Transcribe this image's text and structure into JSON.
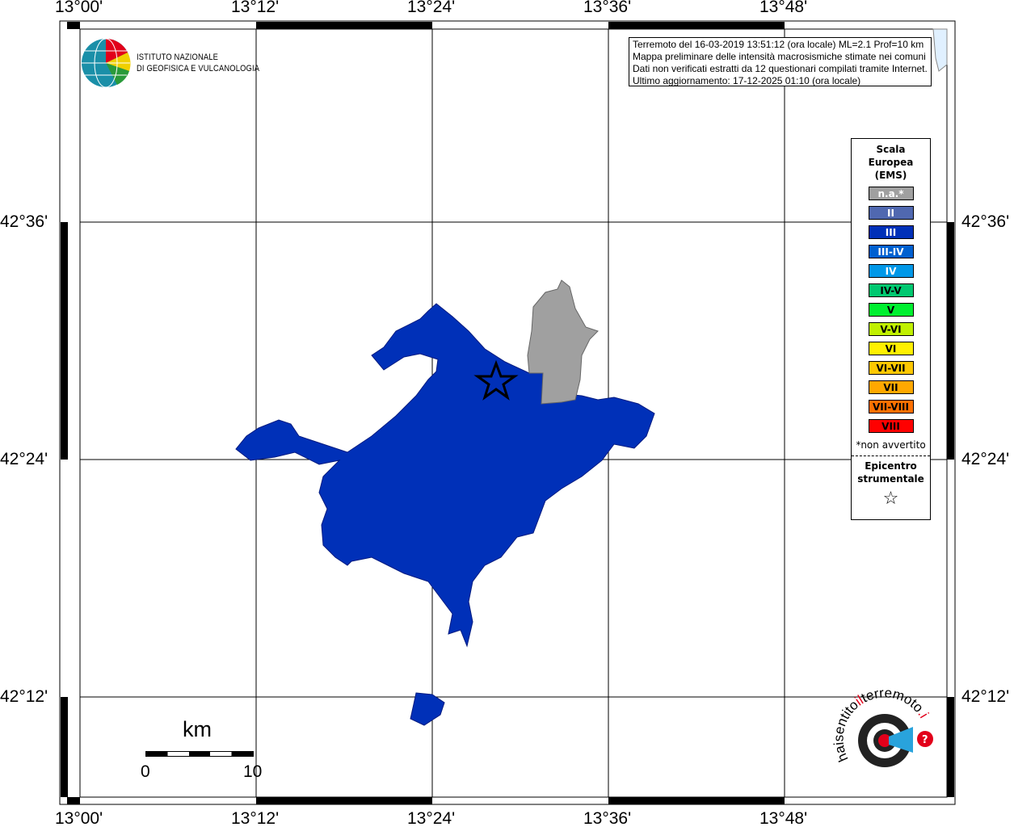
{
  "map": {
    "lon_ticks": [
      "13°00'",
      "13°12'",
      "13°24'",
      "13°36'",
      "13°48'"
    ],
    "lat_ticks": [
      "42°36'",
      "42°24'",
      "42°12'"
    ]
  },
  "info": {
    "lines": [
      "Terremoto del 16-03-2019 13:51:12 (ora locale) ML=2.1 Prof=10 km",
      "Mappa preliminare delle intensità macrosismiche stimate nei comuni",
      "Dati non verificati estratti da 12 questionari compilati tramite Internet.",
      "Ultimo aggiornamento: 17-12-2025 01:10 (ora locale)"
    ]
  },
  "logo": {
    "line1": "ISTITUTO NAZIONALE",
    "line2": "DI GEOFISICA E VULCANOLOGIA",
    "haisentito": "haisentitoilterremoto.it www."
  },
  "legend": {
    "title": [
      "Scala",
      "Europea",
      "(EMS)"
    ],
    "items": [
      {
        "label": "n.a.*",
        "color": "#a0a0a0",
        "text": "#ffffff"
      },
      {
        "label": "II",
        "color": "#5068b0",
        "text": "#ffffff"
      },
      {
        "label": "III",
        "color": "#0030b8",
        "text": "#ffffff"
      },
      {
        "label": "III-IV",
        "color": "#0060d0",
        "text": "#ffffff"
      },
      {
        "label": "IV",
        "color": "#0098e8",
        "text": "#ffffff"
      },
      {
        "label": "IV-V",
        "color": "#00c870",
        "text": "#000000"
      },
      {
        "label": "V",
        "color": "#00f030",
        "text": "#000000"
      },
      {
        "label": "V-VI",
        "color": "#c0f000",
        "text": "#000000"
      },
      {
        "label": "VI",
        "color": "#fff000",
        "text": "#000000"
      },
      {
        "label": "VI-VII",
        "color": "#ffc800",
        "text": "#000000"
      },
      {
        "label": "VII",
        "color": "#ffa800",
        "text": "#000000"
      },
      {
        "label": "VII-VIII",
        "color": "#ff7000",
        "text": "#000000"
      },
      {
        "label": "VIII",
        "color": "#ff0000",
        "text": "#000000"
      }
    ],
    "note": "*non avvertito",
    "epicenter_title": [
      "Epicentro",
      "strumentale"
    ],
    "epicenter_symbol": "☆"
  },
  "scalebar": {
    "unit": "km",
    "min": "0",
    "max": "10"
  },
  "areas": [
    {
      "intensity": "III",
      "color": "#0030b8"
    },
    {
      "intensity": "n.a.*",
      "color": "#a0a0a0"
    }
  ]
}
